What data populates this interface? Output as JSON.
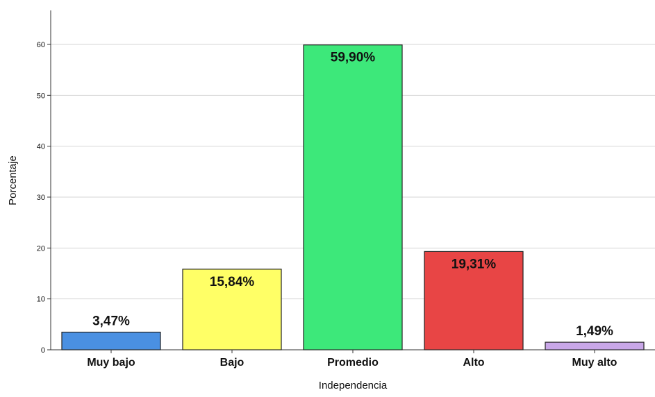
{
  "chart_data": {
    "type": "bar",
    "title": "",
    "xlabel": "Independencia",
    "ylabel": "Porcentaje",
    "ylim": [
      0,
      66
    ],
    "yticks": [
      0,
      10,
      20,
      30,
      40,
      50,
      60
    ],
    "grid": true,
    "categories": [
      "Muy bajo",
      "Bajo",
      "Promedio",
      "Alto",
      "Muy alto"
    ],
    "values": [
      3.47,
      15.84,
      59.9,
      19.31,
      1.49
    ],
    "data_labels": [
      "3,47%",
      "15,84%",
      "59,90%",
      "19,31%",
      "1,49%"
    ],
    "label_position": [
      "outside",
      "inside",
      "inside",
      "inside",
      "outside"
    ],
    "colors": [
      "#4a90e2",
      "#ffff66",
      "#3de87a",
      "#e84545",
      "#c9a7e8"
    ]
  }
}
